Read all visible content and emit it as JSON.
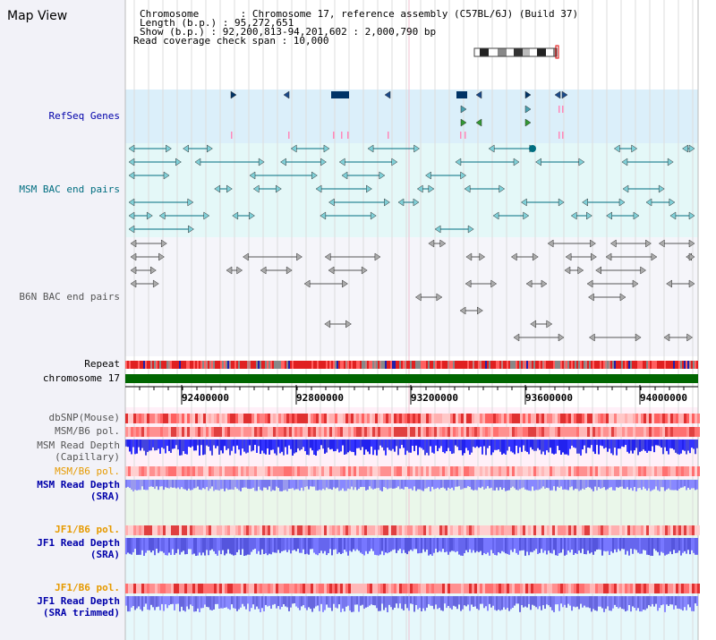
{
  "page": {
    "title": "Map View"
  },
  "info": {
    "line1": "Chromosome       : Chromosome 17, reference assembly (C57BL/6J) (Build 37)",
    "line2": "Length (b.p.) : 95,272,651",
    "line3": "Show (b.p.) : 92,200,813-94,201,602 : 2,000,790 bp",
    "line4": "Read coverage check span : 10,000"
  },
  "tracks": {
    "refseq": "RefSeq Genes",
    "msm_bac": "MSM BAC end pairs",
    "b6n_bac": "B6N BAC end pairs",
    "repeat": "Repeat",
    "chromosome": "chromosome 17",
    "dbsnp": "dbSNP(Mouse)",
    "msm_b6_pol_1": "MSM/B6 pol.",
    "msm_read_depth_cap_1": "MSM Read Depth",
    "msm_read_depth_cap_2": "(Capillary)",
    "msm_b6_pol_2": "MSM/B6 pol.",
    "msm_read_depth_sra_1": "MSM Read Depth",
    "msm_read_depth_sra_2": "(SRA)",
    "jf1_b6_pol_1": "JF1/B6 pol.",
    "jf1_read_depth_sra_1": "JF1 Read Depth",
    "jf1_read_depth_sra_2": "(SRA)",
    "jf1_b6_pol_2": "JF1/B6 pol.",
    "jf1_read_depth_trim_1": "JF1 Read Depth",
    "jf1_read_depth_trim_2": "(SRA trimmed)"
  },
  "axis": {
    "ticks": [
      "92400000",
      "92800000",
      "93200000",
      "93600000",
      "94000000"
    ]
  },
  "colors": {
    "refseq_bg": "#dbeffa",
    "msm_bg": "#e4f8f8",
    "b6n_bg": "#f5f5fa",
    "msm_label": "#006e80",
    "blue_label": "#0000aa",
    "orange_label": "#e69a00",
    "chromosome_bar": "#006600"
  }
}
